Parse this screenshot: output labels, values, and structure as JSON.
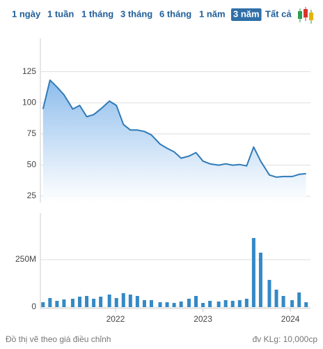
{
  "tabs": [
    "1 ngày",
    "1 tuần",
    "1 tháng",
    "3 tháng",
    "6 tháng",
    "1 năm",
    "3 năm",
    "Tất cả"
  ],
  "active_tab": 6,
  "footnote": "Đồ thị vẽ theo giá điều chỉnh",
  "unit_note": "đv KLg: 10,000cp",
  "chart_data": [
    {
      "type": "area",
      "color": "#2f7ab8",
      "x": [
        2021.17,
        2021.25,
        2021.33,
        2021.41,
        2021.51,
        2021.59,
        2021.67,
        2021.75,
        2021.83,
        2021.93,
        2022.01,
        2022.09,
        2022.17,
        2022.25,
        2022.33,
        2022.41,
        2022.51,
        2022.59,
        2022.67,
        2022.75,
        2022.84,
        2022.92,
        2023.0,
        2023.08,
        2023.18,
        2023.26,
        2023.34,
        2023.42,
        2023.5,
        2023.58,
        2023.66,
        2023.76,
        2023.84,
        2023.92,
        2024.02,
        2024.1,
        2024.18
      ],
      "values": [
        95,
        118.2,
        112.6,
        106.4,
        95,
        97.9,
        88.8,
        90.5,
        95,
        101.3,
        97.9,
        82.6,
        78.1,
        78.1,
        77,
        74.2,
        66.8,
        63.4,
        60.6,
        55.5,
        57.2,
        60,
        53.2,
        51,
        49.9,
        51,
        49.9,
        50.4,
        49.3,
        64.5,
        53.2,
        42,
        40.3,
        40.8,
        40.8,
        42.5,
        43.1
      ],
      "xlim": [
        2021.14,
        2024.23
      ],
      "ylim": [
        20,
        150
      ],
      "yticks": [
        25,
        50,
        75,
        100,
        125
      ],
      "grid": true
    },
    {
      "type": "bar",
      "color": "#3489c6",
      "x": [
        2021.17,
        2021.25,
        2021.33,
        2021.41,
        2021.51,
        2021.59,
        2021.67,
        2021.75,
        2021.83,
        2021.93,
        2022.01,
        2022.09,
        2022.17,
        2022.25,
        2022.33,
        2022.41,
        2022.51,
        2022.59,
        2022.67,
        2022.75,
        2022.84,
        2022.92,
        2023.0,
        2023.08,
        2023.18,
        2023.26,
        2023.34,
        2023.42,
        2023.5,
        2023.58,
        2023.66,
        2023.76,
        2023.84,
        2023.92,
        2024.02,
        2024.1,
        2024.18
      ],
      "values": [
        25.7,
        47.8,
        33.1,
        40.4,
        44.1,
        55.1,
        58.8,
        44.1,
        55.1,
        66.2,
        47.8,
        73.5,
        66.2,
        58.8,
        36.8,
        36.8,
        25.7,
        25.7,
        22,
        29.4,
        44.1,
        58.8,
        22,
        33.1,
        29.4,
        36.8,
        33.1,
        36.8,
        44.1,
        364,
        286.8,
        143.4,
        91.9,
        58.8,
        36.8,
        77.2,
        25.7
      ],
      "xlim": [
        2021.14,
        2024.23
      ],
      "xticks": [
        2022,
        2023,
        2024
      ],
      "ylim": [
        0,
        500
      ],
      "yticks": [
        0,
        {
          "value": 250,
          "label": "250M"
        }
      ],
      "grid": true
    }
  ]
}
